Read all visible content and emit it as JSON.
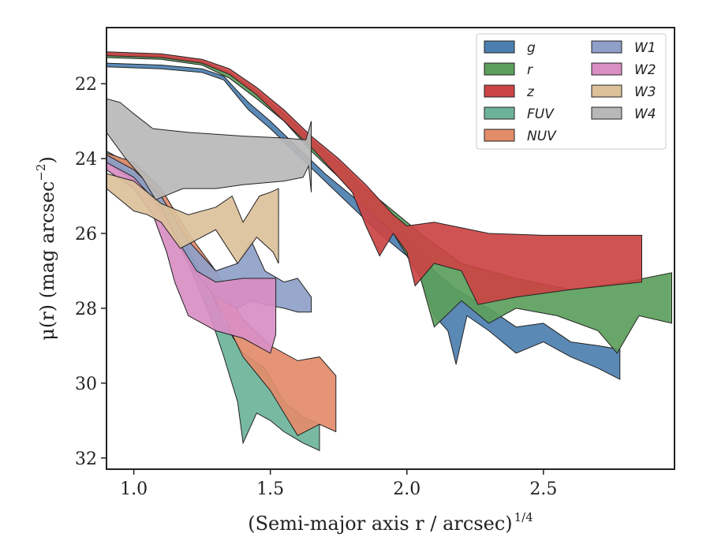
{
  "chart_data": {
    "type": "area",
    "title": "",
    "xlabel": "(Semi-major axis r / arcsec)",
    "xlabel_italic": "r",
    "xlabel_superscript": "1/4",
    "ylabel": "μ(r) (mag arcsec",
    "ylabel_superscript": "−2",
    "ylabel_close": ")",
    "xlim": [
      0.9,
      2.98
    ],
    "ylim": [
      32.3,
      20.5
    ],
    "y_inverted": true,
    "xticks": [
      1.0,
      1.5,
      2.0,
      2.5
    ],
    "xtick_labels": [
      "1.0",
      "1.5",
      "2.0",
      "2.5"
    ],
    "yticks": [
      22,
      24,
      26,
      28,
      30,
      32
    ],
    "ytick_labels": [
      "22",
      "24",
      "26",
      "28",
      "30",
      "32"
    ],
    "grid": false,
    "legend_position": "top-right",
    "legend_columns": 2,
    "series": [
      {
        "name": "g",
        "color": "#4c7fb0",
        "upper": [
          [
            0.9,
            21.45
          ],
          [
            1.1,
            21.5
          ],
          [
            1.25,
            21.6
          ],
          [
            1.33,
            21.8
          ],
          [
            1.38,
            22.2
          ],
          [
            1.42,
            22.5
          ],
          [
            1.5,
            23.0
          ],
          [
            1.6,
            23.7
          ],
          [
            1.7,
            24.4
          ],
          [
            1.8,
            25.0
          ],
          [
            1.9,
            25.7
          ],
          [
            1.95,
            25.9
          ],
          [
            2.0,
            26.05
          ],
          [
            2.1,
            27.0
          ],
          [
            2.18,
            27.5
          ],
          [
            2.3,
            28.0
          ],
          [
            2.4,
            28.5
          ],
          [
            2.5,
            28.4
          ],
          [
            2.6,
            28.9
          ],
          [
            2.7,
            29.0
          ],
          [
            2.78,
            29.1
          ]
        ],
        "lower": [
          [
            0.9,
            21.55
          ],
          [
            1.1,
            21.6
          ],
          [
            1.25,
            21.7
          ],
          [
            1.33,
            21.9
          ],
          [
            1.38,
            22.35
          ],
          [
            1.42,
            22.7
          ],
          [
            1.5,
            23.2
          ],
          [
            1.6,
            23.9
          ],
          [
            1.7,
            24.6
          ],
          [
            1.8,
            25.3
          ],
          [
            1.9,
            26.0
          ],
          [
            1.95,
            26.3
          ],
          [
            2.0,
            26.6
          ],
          [
            2.05,
            27.2
          ],
          [
            2.1,
            28.2
          ],
          [
            2.15,
            28.6
          ],
          [
            2.18,
            29.5
          ],
          [
            2.22,
            28.2
          ],
          [
            2.3,
            28.6
          ],
          [
            2.4,
            29.2
          ],
          [
            2.5,
            28.9
          ],
          [
            2.6,
            29.3
          ],
          [
            2.7,
            29.6
          ],
          [
            2.78,
            29.9
          ]
        ]
      },
      {
        "name": "r",
        "color": "#5c9e5c",
        "upper": [
          [
            0.9,
            21.2
          ],
          [
            1.1,
            21.25
          ],
          [
            1.25,
            21.4
          ],
          [
            1.35,
            21.7
          ],
          [
            1.45,
            22.2
          ],
          [
            1.55,
            22.8
          ],
          [
            1.65,
            23.5
          ],
          [
            1.75,
            24.1
          ],
          [
            1.85,
            24.8
          ],
          [
            1.95,
            25.4
          ],
          [
            2.05,
            26.0
          ],
          [
            2.2,
            26.8
          ],
          [
            2.4,
            27.2
          ],
          [
            2.6,
            27.5
          ],
          [
            2.8,
            27.3
          ],
          [
            2.97,
            27.05
          ]
        ],
        "lower": [
          [
            0.9,
            21.3
          ],
          [
            1.1,
            21.35
          ],
          [
            1.25,
            21.5
          ],
          [
            1.35,
            21.85
          ],
          [
            1.45,
            22.4
          ],
          [
            1.55,
            23.0
          ],
          [
            1.65,
            23.8
          ],
          [
            1.75,
            24.5
          ],
          [
            1.85,
            25.3
          ],
          [
            1.95,
            26.0
          ],
          [
            2.05,
            27.2
          ],
          [
            2.1,
            28.5
          ],
          [
            2.2,
            27.8
          ],
          [
            2.3,
            28.4
          ],
          [
            2.4,
            28.0
          ],
          [
            2.55,
            28.2
          ],
          [
            2.7,
            28.6
          ],
          [
            2.77,
            29.2
          ],
          [
            2.85,
            28.2
          ],
          [
            2.97,
            28.4
          ]
        ]
      },
      {
        "name": "z",
        "color": "#cc4444",
        "upper": [
          [
            0.9,
            21.15
          ],
          [
            1.1,
            21.2
          ],
          [
            1.25,
            21.35
          ],
          [
            1.35,
            21.6
          ],
          [
            1.45,
            22.1
          ],
          [
            1.55,
            22.7
          ],
          [
            1.65,
            23.4
          ],
          [
            1.75,
            24.0
          ],
          [
            1.85,
            24.7
          ],
          [
            1.95,
            25.5
          ],
          [
            2.0,
            25.8
          ],
          [
            2.1,
            25.7
          ],
          [
            2.3,
            26.0
          ],
          [
            2.5,
            26.05
          ],
          [
            2.7,
            26.05
          ],
          [
            2.86,
            26.05
          ]
        ],
        "lower": [
          [
            0.9,
            21.25
          ],
          [
            1.1,
            21.3
          ],
          [
            1.25,
            21.45
          ],
          [
            1.35,
            21.75
          ],
          [
            1.45,
            22.3
          ],
          [
            1.55,
            23.0
          ],
          [
            1.65,
            23.7
          ],
          [
            1.75,
            24.5
          ],
          [
            1.8,
            24.9
          ],
          [
            1.85,
            25.8
          ],
          [
            1.9,
            26.6
          ],
          [
            1.95,
            26.0
          ],
          [
            2.0,
            26.5
          ],
          [
            2.03,
            27.4
          ],
          [
            2.1,
            26.8
          ],
          [
            2.2,
            27.0
          ],
          [
            2.26,
            27.9
          ],
          [
            2.4,
            27.7
          ],
          [
            2.6,
            27.5
          ],
          [
            2.86,
            27.3
          ]
        ]
      },
      {
        "name": "FUV",
        "color": "#6db39a",
        "upper": [
          [
            0.9,
            23.8
          ],
          [
            1.0,
            24.2
          ],
          [
            1.1,
            25.0
          ],
          [
            1.2,
            26.3
          ],
          [
            1.28,
            27.5
          ],
          [
            1.33,
            28.4
          ],
          [
            1.4,
            29.2
          ],
          [
            1.48,
            29.6
          ],
          [
            1.55,
            30.5
          ],
          [
            1.62,
            30.9
          ],
          [
            1.68,
            31.1
          ]
        ],
        "lower": [
          [
            0.9,
            24.0
          ],
          [
            1.0,
            24.5
          ],
          [
            1.1,
            25.3
          ],
          [
            1.2,
            26.8
          ],
          [
            1.28,
            28.2
          ],
          [
            1.33,
            29.3
          ],
          [
            1.38,
            30.5
          ],
          [
            1.4,
            31.6
          ],
          [
            1.45,
            30.8
          ],
          [
            1.5,
            31.0
          ],
          [
            1.55,
            31.3
          ],
          [
            1.62,
            31.6
          ],
          [
            1.68,
            31.8
          ]
        ]
      },
      {
        "name": "NUV",
        "color": "#e38c6a",
        "upper": [
          [
            0.9,
            23.85
          ],
          [
            1.0,
            24.1
          ],
          [
            1.1,
            24.8
          ],
          [
            1.2,
            26.0
          ],
          [
            1.3,
            27.0
          ],
          [
            1.4,
            28.3
          ],
          [
            1.5,
            29.0
          ],
          [
            1.6,
            29.4
          ],
          [
            1.68,
            29.3
          ],
          [
            1.74,
            29.8
          ]
        ],
        "lower": [
          [
            0.9,
            24.05
          ],
          [
            1.0,
            24.4
          ],
          [
            1.1,
            25.2
          ],
          [
            1.2,
            26.5
          ],
          [
            1.3,
            27.8
          ],
          [
            1.4,
            29.3
          ],
          [
            1.5,
            30.2
          ],
          [
            1.55,
            30.8
          ],
          [
            1.6,
            31.4
          ],
          [
            1.68,
            31.1
          ],
          [
            1.74,
            31.3
          ]
        ]
      },
      {
        "name": "W1",
        "color": "#8f9fc8",
        "upper": [
          [
            0.9,
            23.9
          ],
          [
            1.0,
            24.3
          ],
          [
            1.1,
            25.0
          ],
          [
            1.2,
            26.2
          ],
          [
            1.3,
            27.0
          ],
          [
            1.38,
            26.8
          ],
          [
            1.43,
            26.2
          ],
          [
            1.48,
            27.0
          ],
          [
            1.55,
            27.3
          ],
          [
            1.6,
            27.2
          ],
          [
            1.65,
            27.7
          ]
        ],
        "lower": [
          [
            0.9,
            24.1
          ],
          [
            1.0,
            24.6
          ],
          [
            1.1,
            25.4
          ],
          [
            1.2,
            26.8
          ],
          [
            1.3,
            27.7
          ],
          [
            1.38,
            28.0
          ],
          [
            1.43,
            27.8
          ],
          [
            1.48,
            27.9
          ],
          [
            1.55,
            28.0
          ],
          [
            1.6,
            28.1
          ],
          [
            1.65,
            28.1
          ]
        ]
      },
      {
        "name": "W2",
        "color": "#d98ec4",
        "upper": [
          [
            0.9,
            24.1
          ],
          [
            1.0,
            24.5
          ],
          [
            1.1,
            25.3
          ],
          [
            1.17,
            26.3
          ],
          [
            1.23,
            27.0
          ],
          [
            1.3,
            27.3
          ],
          [
            1.4,
            27.2
          ],
          [
            1.52,
            27.2
          ]
        ],
        "lower": [
          [
            0.9,
            24.3
          ],
          [
            1.0,
            24.8
          ],
          [
            1.07,
            25.5
          ],
          [
            1.12,
            26.5
          ],
          [
            1.15,
            27.3
          ],
          [
            1.2,
            28.2
          ],
          [
            1.3,
            28.6
          ],
          [
            1.4,
            28.8
          ],
          [
            1.5,
            29.2
          ],
          [
            1.52,
            28.7
          ]
        ]
      },
      {
        "name": "W3",
        "color": "#dcc19b",
        "upper": [
          [
            0.9,
            24.4
          ],
          [
            1.0,
            24.6
          ],
          [
            1.1,
            25.2
          ],
          [
            1.2,
            25.5
          ],
          [
            1.3,
            25.3
          ],
          [
            1.36,
            25.0
          ],
          [
            1.4,
            25.7
          ],
          [
            1.46,
            25.0
          ],
          [
            1.5,
            24.9
          ],
          [
            1.53,
            24.8
          ]
        ],
        "lower": [
          [
            0.9,
            24.8
          ],
          [
            1.0,
            25.4
          ],
          [
            1.05,
            25.5
          ],
          [
            1.1,
            25.7
          ],
          [
            1.17,
            26.4
          ],
          [
            1.3,
            25.9
          ],
          [
            1.38,
            26.8
          ],
          [
            1.45,
            26.1
          ],
          [
            1.51,
            26.5
          ],
          [
            1.53,
            26.8
          ]
        ]
      },
      {
        "name": "W4",
        "color": "#b8b8b8",
        "upper": [
          [
            0.9,
            22.4
          ],
          [
            0.95,
            22.5
          ],
          [
            1.0,
            22.8
          ],
          [
            1.07,
            23.2
          ],
          [
            1.2,
            23.3
          ],
          [
            1.4,
            23.4
          ],
          [
            1.55,
            23.45
          ],
          [
            1.63,
            23.5
          ],
          [
            1.65,
            23.0
          ]
        ],
        "lower": [
          [
            0.9,
            23.3
          ],
          [
            0.97,
            24.0
          ],
          [
            1.03,
            24.5
          ],
          [
            1.08,
            25.1
          ],
          [
            1.18,
            24.8
          ],
          [
            1.3,
            24.8
          ],
          [
            1.4,
            24.7
          ],
          [
            1.55,
            24.6
          ],
          [
            1.62,
            24.5
          ],
          [
            1.64,
            24.2
          ],
          [
            1.65,
            24.9
          ]
        ]
      }
    ]
  }
}
